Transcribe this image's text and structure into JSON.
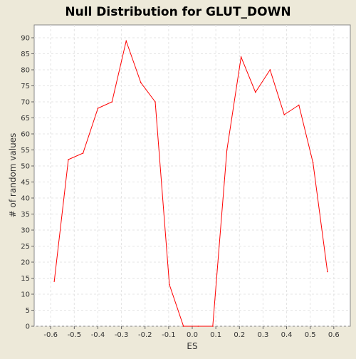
{
  "chart_data": {
    "type": "line",
    "title": "Null Distribution for GLUT_DOWN",
    "xlabel": "ES",
    "ylabel": "# of random values",
    "xlim": [
      -0.67,
      0.67
    ],
    "ylim": [
      0,
      94
    ],
    "xticks": [
      -0.6,
      -0.5,
      -0.4,
      -0.3,
      -0.2,
      -0.1,
      0.0,
      0.1,
      0.2,
      0.3,
      0.4,
      0.5,
      0.6
    ],
    "xtick_labels": [
      "-0.6",
      "-0.5",
      "-0.4",
      "-0.3",
      "-0.2",
      "-0.1",
      "0.0",
      "0.1",
      "0.2",
      "0.3",
      "0.4",
      "0.5",
      "0.6"
    ],
    "yticks": [
      0,
      5,
      10,
      15,
      20,
      25,
      30,
      35,
      40,
      45,
      50,
      55,
      60,
      65,
      70,
      75,
      80,
      85,
      90
    ],
    "ytick_labels": [
      "0",
      "5",
      "10",
      "15",
      "20",
      "25",
      "30",
      "35",
      "40",
      "45",
      "50",
      "55",
      "60",
      "65",
      "70",
      "75",
      "80",
      "85",
      "90"
    ],
    "grid": true,
    "series": [
      {
        "color": "#ff0000",
        "points": [
          [
            -0.585,
            14
          ],
          [
            -0.525,
            52
          ],
          [
            -0.463,
            54
          ],
          [
            -0.4,
            68
          ],
          [
            -0.34,
            70
          ],
          [
            -0.28,
            89
          ],
          [
            -0.218,
            76
          ],
          [
            -0.157,
            70
          ],
          [
            -0.097,
            13
          ],
          [
            -0.037,
            0
          ],
          [
            0.025,
            0
          ],
          [
            0.087,
            0
          ],
          [
            0.147,
            55
          ],
          [
            0.207,
            84
          ],
          [
            0.268,
            73
          ],
          [
            0.33,
            80
          ],
          [
            0.39,
            66
          ],
          [
            0.452,
            69
          ],
          [
            0.512,
            51
          ],
          [
            0.573,
            17
          ]
        ]
      }
    ]
  }
}
